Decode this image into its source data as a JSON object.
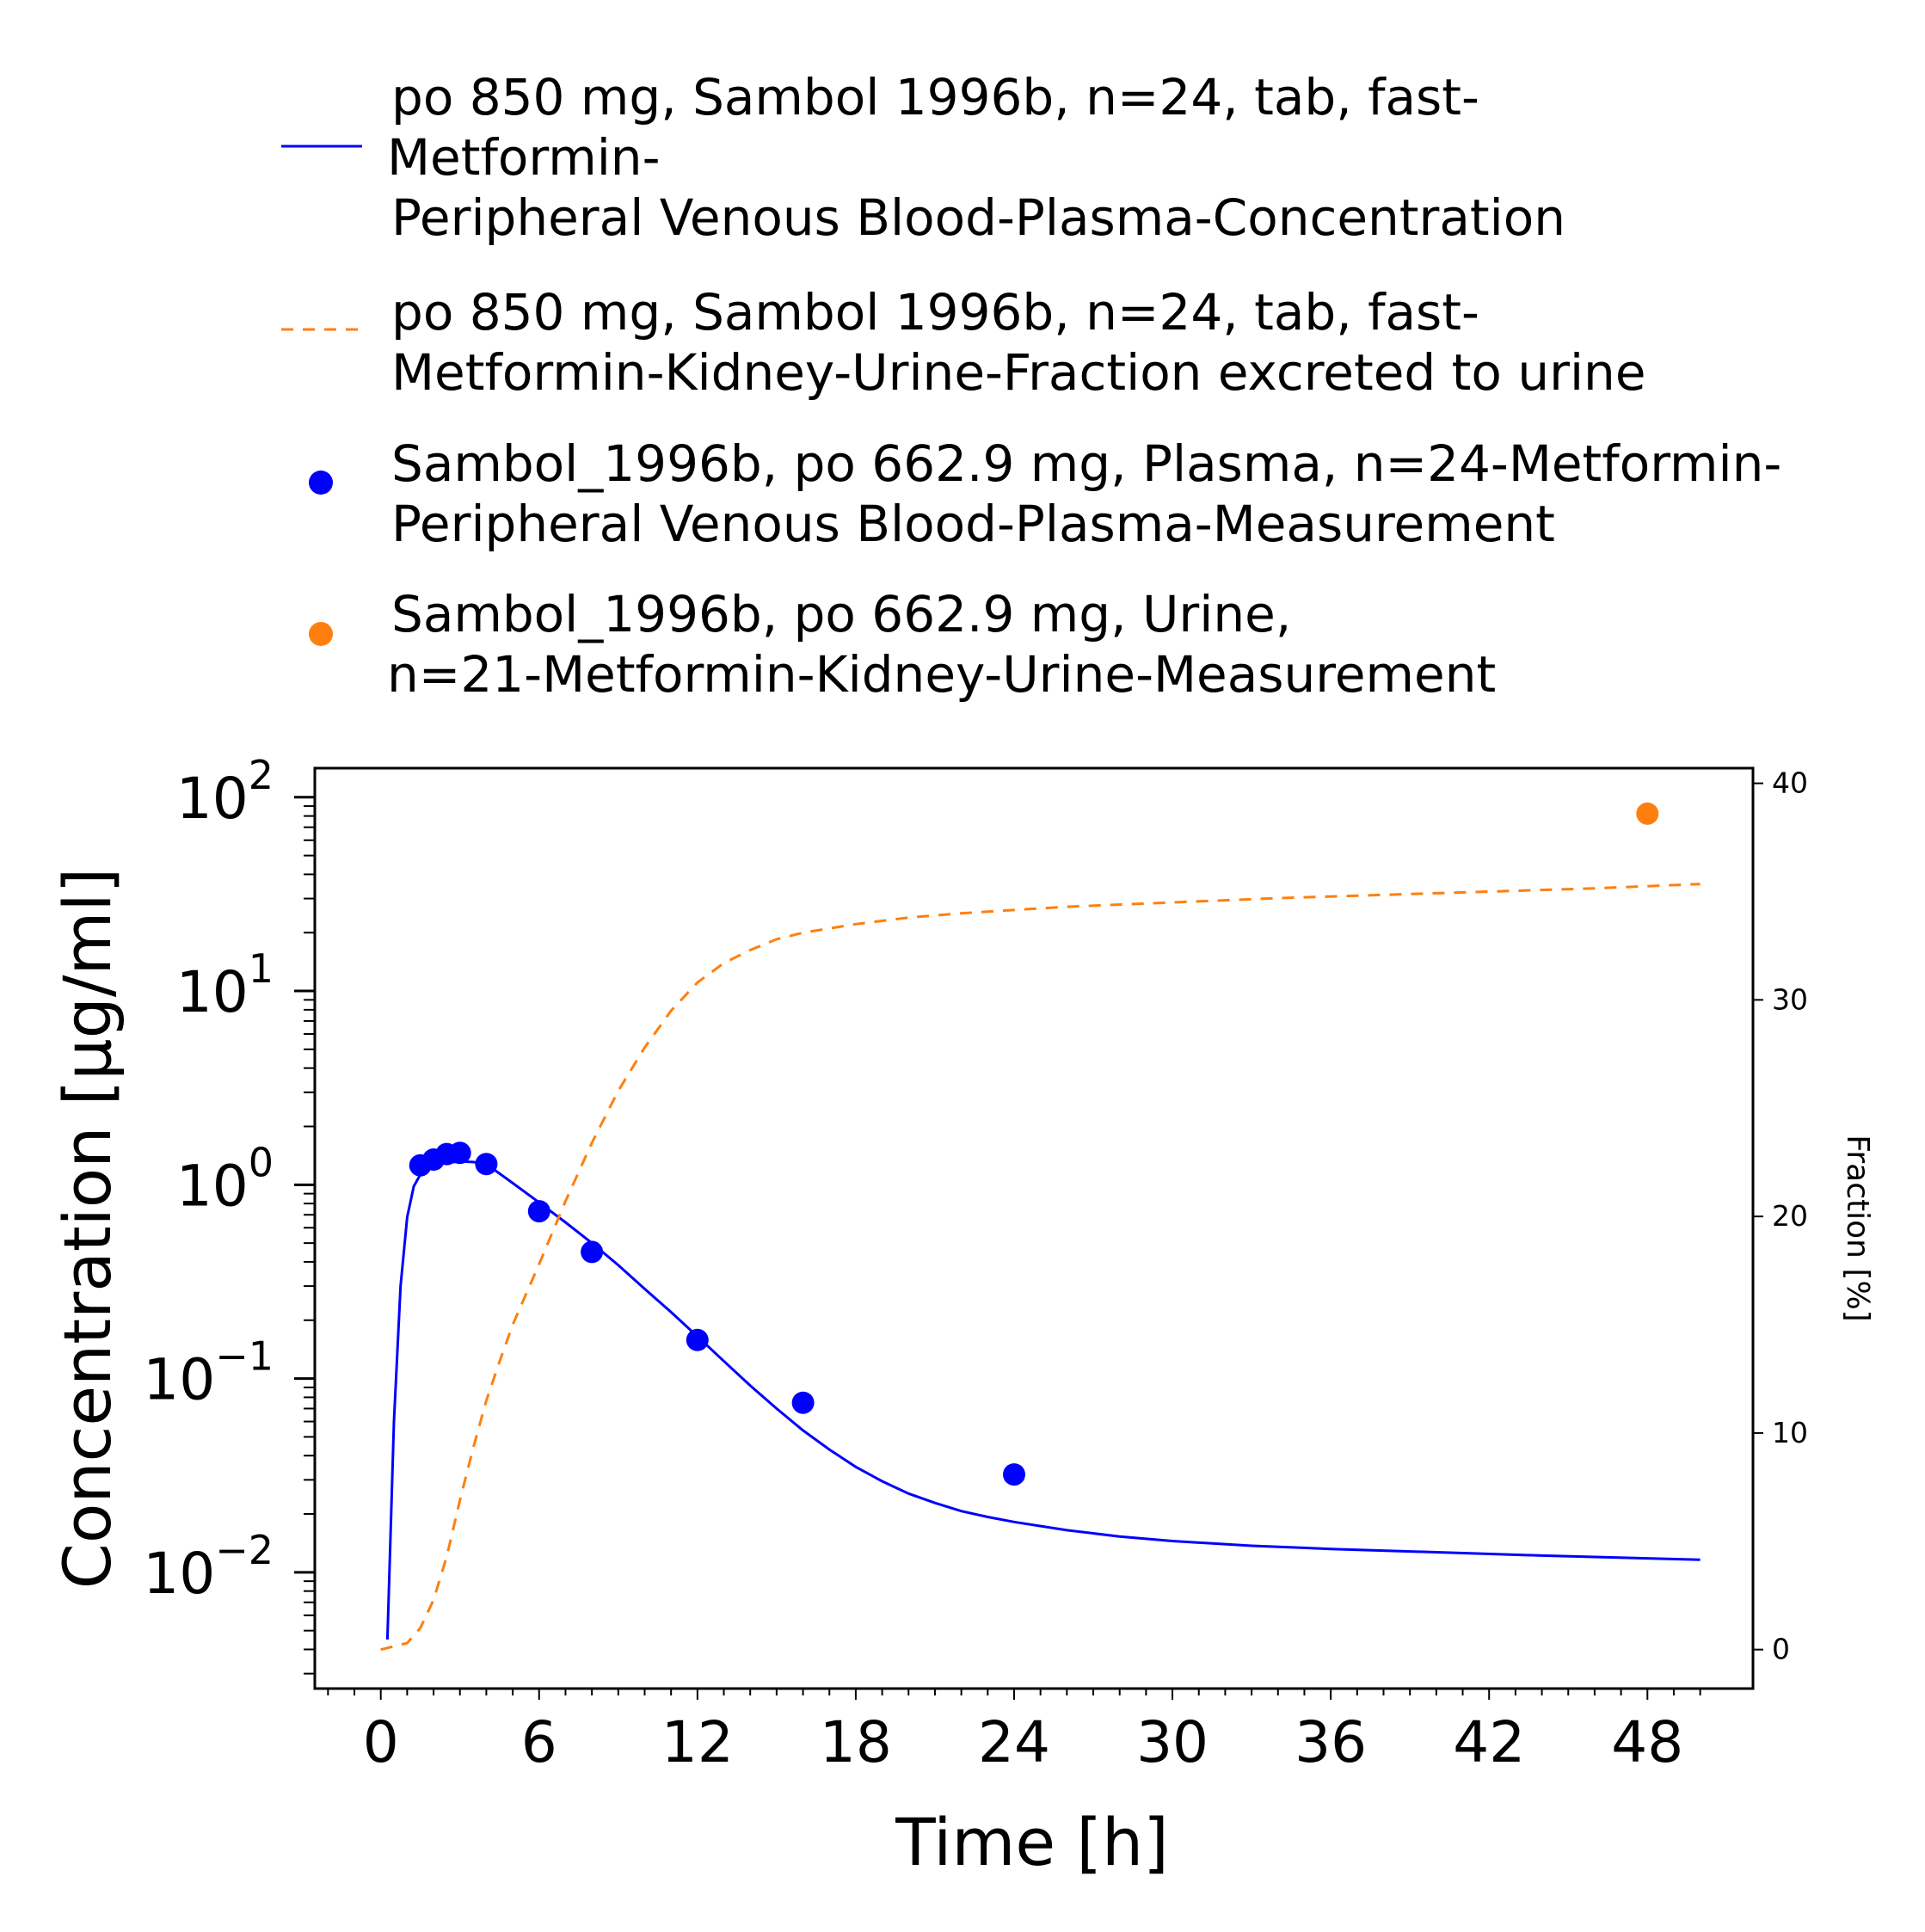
{
  "chart_data": {
    "type": "line",
    "xlabel": "Time [h]",
    "ylabel": "Concentration [µg/ml]",
    "y2label": "Fraction [%]",
    "xlim": [
      -2.5,
      52
    ],
    "ylim_log10": [
      -2.6,
      2.15
    ],
    "y2lim": [
      -1.8,
      40.7
    ],
    "x_ticks": [
      0,
      6,
      12,
      18,
      24,
      30,
      36,
      42,
      48
    ],
    "x_tick_labels": [
      "0",
      "6",
      "12",
      "18",
      "24",
      "30",
      "36",
      "42",
      "48"
    ],
    "y_ticks": [
      {
        "base": "10",
        "exp": "2",
        "value": 100
      },
      {
        "base": "10",
        "exp": "1",
        "value": 10
      },
      {
        "base": "10",
        "exp": "0",
        "value": 1
      },
      {
        "base": "10",
        "exp": "−1",
        "value": 0.1
      },
      {
        "base": "10",
        "exp": "−2",
        "value": 0.01
      }
    ],
    "y2_ticks": [
      0,
      10,
      20,
      30,
      40
    ],
    "y2_tick_labels": [
      "0",
      "10",
      "20",
      "30",
      "40"
    ],
    "legend_position": "top",
    "series": [
      {
        "kind": "line",
        "axis": "left",
        "color": "#0000ff",
        "dash": "solid",
        "legend": [
          "po 850 mg, Sambol 1996b, n=24, tab, fast-",
          "Metformin-",
          "Peripheral Venous Blood-Plasma-Concentration"
        ],
        "x": [
          0.25,
          0.5,
          0.75,
          1.0,
          1.25,
          1.5,
          1.75,
          2.0,
          2.5,
          3.0,
          3.5,
          4.0,
          5.0,
          6.0,
          7.0,
          8.0,
          9.0,
          10.0,
          11.0,
          12.0,
          13.0,
          14.0,
          15.0,
          16.0,
          17.0,
          18.0,
          19.0,
          20.0,
          21.0,
          22.0,
          23.0,
          24.0,
          26.0,
          28.0,
          30.0,
          33.0,
          36.0,
          40.0,
          44.0,
          48.0,
          50.0
        ],
        "y": [
          0.0045,
          0.06,
          0.3,
          0.68,
          0.98,
          1.13,
          1.21,
          1.25,
          1.3,
          1.32,
          1.31,
          1.28,
          1.02,
          0.81,
          0.64,
          0.5,
          0.385,
          0.29,
          0.22,
          0.165,
          0.123,
          0.092,
          0.07,
          0.054,
          0.043,
          0.035,
          0.0295,
          0.0255,
          0.0228,
          0.0207,
          0.0193,
          0.0182,
          0.0165,
          0.0153,
          0.0145,
          0.0137,
          0.0132,
          0.0127,
          0.0122,
          0.0118,
          0.0116
        ]
      },
      {
        "kind": "line",
        "axis": "right",
        "color": "#ff7f0e",
        "dash": "dashed",
        "legend": [
          "po 850 mg, Sambol 1996b, n=24, tab, fast-",
          "Metformin-Kidney-Urine-Fraction excreted to urine"
        ],
        "x": [
          0,
          1,
          1.5,
          2,
          2.5,
          3,
          3.5,
          4,
          4.5,
          5,
          6,
          7,
          8,
          9,
          10,
          11,
          12,
          13,
          14,
          15,
          16,
          17,
          18,
          20,
          22,
          24,
          26,
          28,
          30,
          34,
          38,
          42,
          46,
          50
        ],
        "y": [
          0,
          0.3,
          1.0,
          2.3,
          4.3,
          6.9,
          9.3,
          11.5,
          13.3,
          15.0,
          17.8,
          20.7,
          23.4,
          25.8,
          27.8,
          29.5,
          30.8,
          31.7,
          32.3,
          32.8,
          33.1,
          33.3,
          33.5,
          33.8,
          34.0,
          34.15,
          34.3,
          34.4,
          34.5,
          34.7,
          34.85,
          35.0,
          35.15,
          35.35
        ]
      },
      {
        "kind": "scatter",
        "axis": "left",
        "color": "#0000ff",
        "legend": [
          "Sambol_1996b, po 662.9 mg, Plasma, n=24-Metformin-",
          "Peripheral Venous Blood-Plasma-Measurement"
        ],
        "x": [
          1.5,
          2.0,
          2.5,
          3.0,
          4.0,
          6.0,
          8.0,
          12.0,
          16.0,
          24.0
        ],
        "y": [
          1.26,
          1.35,
          1.44,
          1.46,
          1.28,
          0.73,
          0.45,
          0.158,
          0.075,
          0.032
        ]
      },
      {
        "kind": "scatter",
        "axis": "right",
        "color": "#ff7f0e",
        "legend": [
          "Sambol_1996b, po 662.9 mg, Urine,",
          "n=21-Metformin-Kidney-Urine-Measurement"
        ],
        "x": [
          48.0
        ],
        "y": [
          38.6
        ]
      }
    ]
  }
}
